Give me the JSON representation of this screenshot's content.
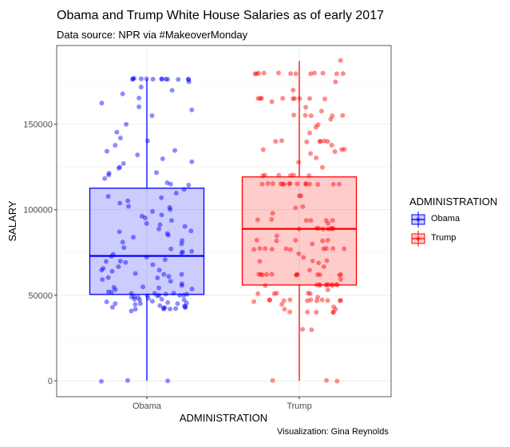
{
  "chart_data": {
    "type": "boxplot",
    "title": "Obama and Trump White House Salaries as of early 2017",
    "subtitle": "Data source: NPR via #MakeoverMonday",
    "caption": "Visualization: Gina Reynolds",
    "xlabel": "ADMINISTRATION",
    "ylabel": "SALARY",
    "ylim": [
      -9300,
      196000
    ],
    "yticks": [
      0,
      50000,
      100000,
      150000
    ],
    "ytick_labels": [
      "0",
      "50000",
      "100000",
      "150000"
    ],
    "categories": [
      "Obama",
      "Trump"
    ],
    "legend": {
      "title": "ADMINISTRATION",
      "position": "right",
      "entries": [
        "Obama",
        "Trump"
      ]
    },
    "series": [
      {
        "name": "Obama",
        "color": "#0000FF",
        "box": {
          "min": 0,
          "q1": 50500,
          "median": 73000,
          "q3": 112600,
          "max": 176500
        },
        "points": [
          0,
          0,
          0,
          41000,
          42000,
          42000,
          42000,
          42000,
          42500,
          42500,
          43000,
          43000,
          43500,
          44000,
          44000,
          44500,
          45000,
          45000,
          45000,
          45500,
          46000,
          46000,
          46500,
          47000,
          47000,
          47500,
          48000,
          48000,
          48500,
          49000,
          49000,
          49500,
          50000,
          50000,
          50000,
          50000,
          50500,
          50500,
          51000,
          51000,
          51500,
          52000,
          52000,
          53000,
          53500,
          54000,
          55000,
          55000,
          56000,
          57000,
          58000,
          59000,
          60000,
          60000,
          61000,
          62000,
          62000,
          63000,
          64000,
          65000,
          65000,
          66000,
          67000,
          68000,
          69000,
          70000,
          70000,
          71000,
          72000,
          73000,
          74000,
          75000,
          75000,
          76000,
          77000,
          78000,
          80000,
          81000,
          82000,
          84000,
          85000,
          86000,
          87000,
          88000,
          89000,
          90000,
          91000,
          92000,
          94000,
          95000,
          96000,
          97000,
          99000,
          100000,
          101000,
          102000,
          104000,
          105000,
          107000,
          108000,
          110000,
          112000,
          114000,
          115000,
          116000,
          118000,
          120000,
          121000,
          122000,
          124000,
          125000,
          127000,
          128000,
          130000,
          132000,
          134000,
          135000,
          138000,
          140000,
          142000,
          145000,
          150000,
          155000,
          158000,
          160000,
          162000,
          165000,
          168000,
          170000,
          172000,
          175000,
          176500,
          176500,
          176500,
          176500,
          176500,
          176500,
          176500,
          176500,
          176500,
          176500,
          176500,
          176500,
          176500
        ]
      },
      {
        "name": "Trump",
        "color": "#FF0000",
        "box": {
          "min": 0,
          "q1": 56000,
          "median": 88800,
          "q3": 119200,
          "max": 187000
        },
        "points": [
          0,
          0,
          0,
          30000,
          30000,
          40000,
          40000,
          40000,
          40000,
          40000,
          42000,
          42000,
          43000,
          45000,
          46000,
          47000,
          47000,
          47000,
          47000,
          47000,
          47000,
          47000,
          47000,
          47000,
          47000,
          47000,
          49000,
          51000,
          51000,
          51000,
          51000,
          51000,
          53000,
          56000,
          56000,
          56000,
          56000,
          56000,
          56000,
          56000,
          56000,
          56000,
          56000,
          56000,
          59000,
          62000,
          62000,
          62000,
          62000,
          62000,
          62000,
          62000,
          62000,
          62000,
          62000,
          62000,
          62000,
          65000,
          67000,
          69000,
          70000,
          70000,
          70000,
          72000,
          74000,
          77000,
          77000,
          77000,
          77000,
          77000,
          77000,
          77000,
          77000,
          77000,
          77000,
          80000,
          82000,
          82000,
          82000,
          82000,
          82000,
          85000,
          89000,
          89000,
          89000,
          89000,
          89000,
          89000,
          89000,
          89000,
          92000,
          94000,
          94000,
          94000,
          94000,
          94000,
          94000,
          98000,
          101000,
          102000,
          108000,
          108000,
          115000,
          115000,
          115000,
          115000,
          115000,
          115000,
          115000,
          115000,
          115000,
          115000,
          115000,
          115000,
          115000,
          115000,
          115000,
          120000,
          120000,
          120000,
          120000,
          120000,
          120000,
          125000,
          128000,
          130000,
          133000,
          134000,
          135000,
          135000,
          135000,
          138000,
          140000,
          140000,
          140000,
          140000,
          140000,
          140000,
          140000,
          145000,
          148000,
          150000,
          153000,
          155000,
          155000,
          155000,
          155000,
          155000,
          158000,
          160000,
          163000,
          165000,
          165000,
          165000,
          165000,
          165000,
          165000,
          165000,
          165000,
          165000,
          170000,
          175000,
          179700,
          179700,
          179700,
          179700,
          179700,
          179700,
          179700,
          179700,
          179700,
          179700,
          179700,
          179700,
          187000
        ]
      }
    ]
  }
}
